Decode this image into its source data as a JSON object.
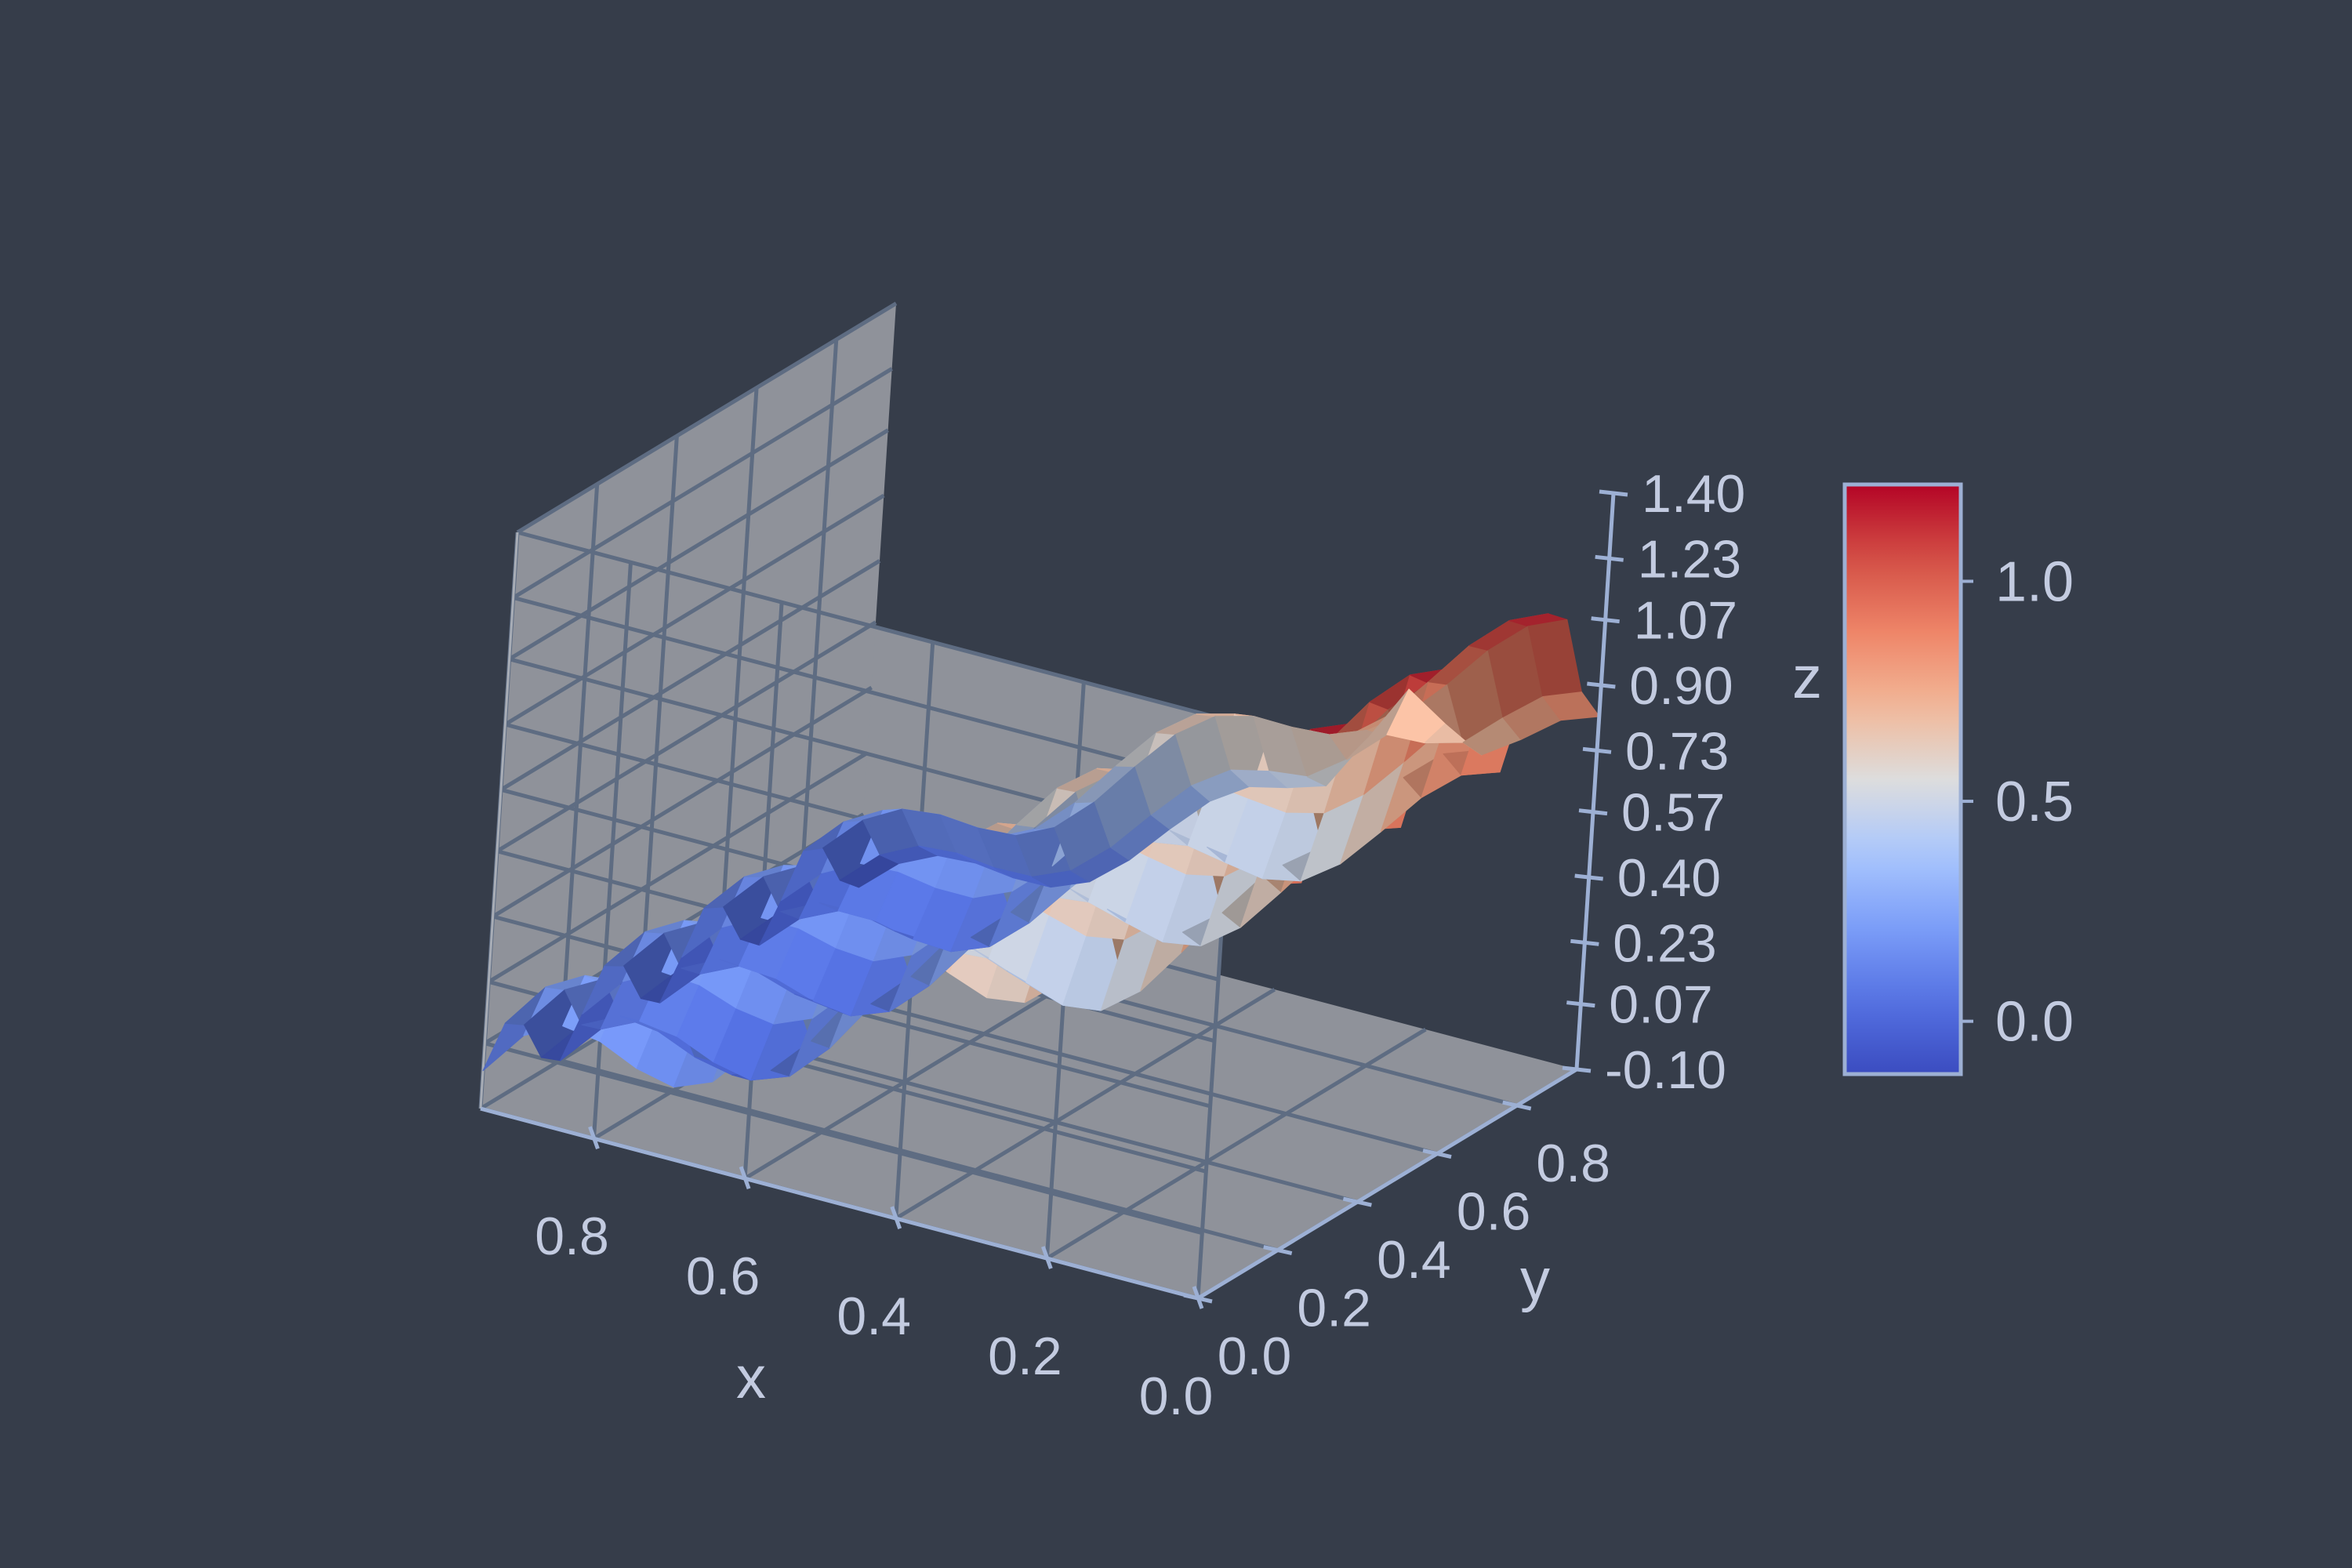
{
  "chart_data": {
    "type": "surface",
    "title": "",
    "xlabel": "x",
    "ylabel": "y",
    "zlabel": "z",
    "xlim": [
      0.0,
      0.95
    ],
    "ylim": [
      0.0,
      0.95
    ],
    "zlim": [
      -0.1,
      1.4
    ],
    "x_ticks": [
      "0.0",
      "0.2",
      "0.4",
      "0.6",
      "0.8"
    ],
    "y_ticks": [
      "0.0",
      "0.2",
      "0.4",
      "0.6",
      "0.8"
    ],
    "z_ticks": [
      "-0.10",
      "0.07",
      "0.23",
      "0.40",
      "0.57",
      "0.73",
      "0.90",
      "1.07",
      "1.23",
      "1.40"
    ],
    "x_tick_values": [
      0.0,
      0.2,
      0.4,
      0.6,
      0.8
    ],
    "y_tick_values": [
      0.0,
      0.2,
      0.4,
      0.6,
      0.8
    ],
    "colormap": "coolwarm",
    "colorbar": {
      "ticks": [
        "0.0",
        "0.5",
        "1.0"
      ],
      "tick_values": [
        0.0,
        0.5,
        1.0
      ],
      "range": [
        -0.12,
        1.22
      ],
      "location": "right"
    },
    "grid": true,
    "surface": {
      "x": [
        0.0,
        0.05,
        0.1,
        0.15,
        0.2,
        0.25,
        0.3,
        0.35,
        0.4,
        0.45,
        0.5,
        0.55,
        0.6,
        0.65,
        0.7,
        0.75,
        0.8,
        0.85,
        0.9,
        0.95
      ],
      "y": [
        0.0,
        0.05,
        0.1,
        0.15,
        0.2,
        0.25,
        0.3,
        0.35,
        0.4,
        0.45,
        0.5,
        0.55,
        0.6,
        0.65,
        0.7,
        0.75,
        0.8,
        0.85,
        0.9,
        0.95
      ],
      "z_model": "approximate: 0.95 - 0.95*x + 0.17*sin(25y)*(1-0.5x) + 0.12*sin(15x+1)*(1-0.4y) + 0.3*bump(0.25,0.95)",
      "z_min": -0.12,
      "z_max": 1.22
    }
  },
  "colors": {
    "background": "#363d4a",
    "pane_fill": "#8f929a",
    "grid_line": "#5e6c82",
    "axis_line": "#9db0d4",
    "tick_label": "#c3cbe0",
    "colormap_low": "#3b4cc0",
    "colormap_mid": "#dddddd",
    "colormap_high": "#b40426"
  }
}
